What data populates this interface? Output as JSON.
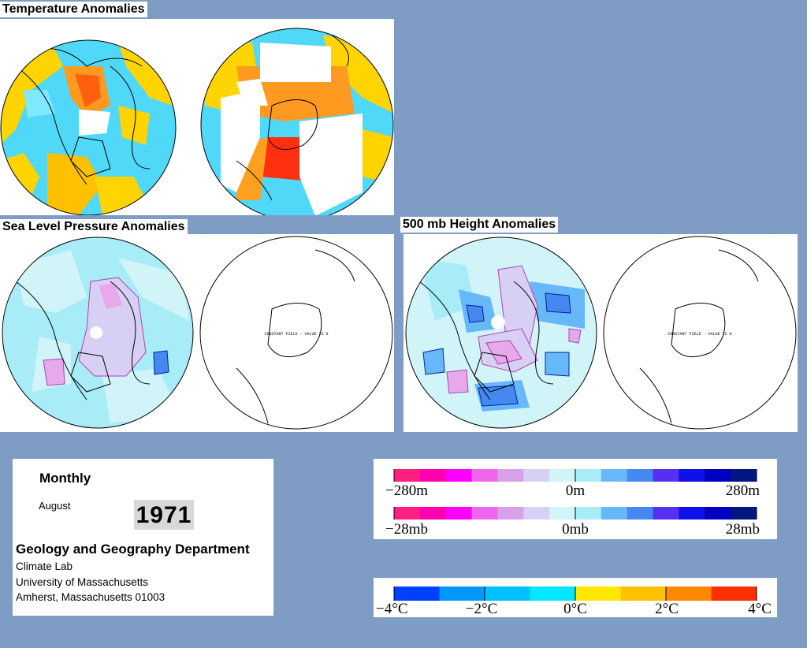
{
  "titles": {
    "temperature": "Temperature Anomalies",
    "slp": "Sea Level Pressure Anomalies",
    "height": "500 mb Height Anomalies"
  },
  "map_annotation": "CONSTANT FIELD - VALUE IS 0",
  "info": {
    "period": "Monthly",
    "month": "August",
    "year": "1971",
    "department": "Geology and Geography Department",
    "lines": [
      "Climate Lab",
      "University of Massachusetts",
      "Amherst, Massachusetts 01003"
    ]
  },
  "legends": {
    "height_labels": [
      "−280m",
      "0m",
      "280m"
    ],
    "pressure_labels": [
      "−28mb",
      "0mb",
      "28mb"
    ],
    "temperature_labels": [
      "−4°C",
      "−2°C",
      "0°C",
      "2°C",
      "4°C"
    ],
    "anomaly_colors": [
      "#ff1f80",
      "#ff00b0",
      "#ff00ff",
      "#ee66ee",
      "#d8a0e8",
      "#d8d0f4",
      "#d0f4f8",
      "#a8ecf8",
      "#66b8f8",
      "#4488f0",
      "#5530f0",
      "#1010e8",
      "#0000c0",
      "#001880"
    ],
    "temperature_colors": [
      "#0040ff",
      "#0098ff",
      "#00c0ff",
      "#00e8ff",
      "#ffe800",
      "#ffc000",
      "#ff8800",
      "#ff3000"
    ]
  },
  "colors": {
    "background": "#7f9cc4"
  }
}
